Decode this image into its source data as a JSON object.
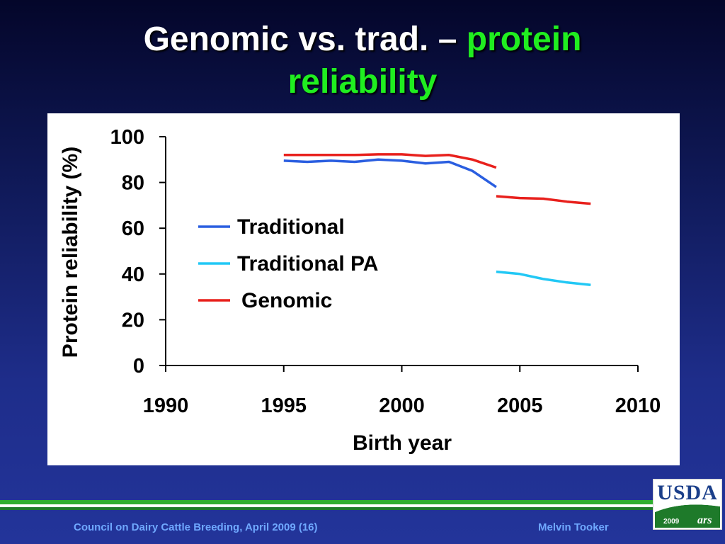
{
  "slide": {
    "title_white": "Genomic vs. trad. – ",
    "title_green_1": "protein",
    "title_green_2": "reliability",
    "footer_left": "Council on Dairy Cattle Breeding, April 2009 (16)",
    "footer_right": "Melvin Tooker",
    "logo_text": "USDA",
    "logo_year": "2009",
    "logo_sub": "ars"
  },
  "chart_data": {
    "type": "line",
    "title": "",
    "xlabel": "Birth year",
    "ylabel": "Protein reliability (%)",
    "xlim": [
      1990,
      2010
    ],
    "ylim": [
      0,
      100
    ],
    "x_ticks": [
      1990,
      1995,
      2000,
      2005,
      2010
    ],
    "y_ticks": [
      0,
      20,
      40,
      60,
      80,
      100
    ],
    "grid": false,
    "legend_position": "center-left",
    "series": [
      {
        "name": "Traditional",
        "color": "#2a5ee0",
        "x": [
          1995,
          1996,
          1997,
          1998,
          1999,
          2000,
          2001,
          2002,
          2003,
          2004
        ],
        "y": [
          89.5,
          89.0,
          89.5,
          89.0,
          90.0,
          89.5,
          88.3,
          89.0,
          85.0,
          78.0
        ]
      },
      {
        "name": "Traditional PA",
        "color": "#22c8f5",
        "x": [
          2004,
          2005,
          2006,
          2007,
          2008
        ],
        "y": [
          41.0,
          40.0,
          37.8,
          36.3,
          35.2
        ]
      },
      {
        "name": "Genomic",
        "color": "#e8201c",
        "segments": [
          {
            "x": [
              1995,
              1996,
              1997,
              1998,
              1999,
              2000,
              2001,
              2002,
              2003,
              2004
            ],
            "y": [
              92.0,
              92.0,
              92.0,
              92.0,
              92.3,
              92.3,
              91.6,
              92.0,
              90.0,
              86.5
            ]
          },
          {
            "x": [
              2004,
              2005,
              2006,
              2007,
              2008
            ],
            "y": [
              74.0,
              73.2,
              72.9,
              71.6,
              70.7
            ]
          }
        ]
      }
    ]
  }
}
